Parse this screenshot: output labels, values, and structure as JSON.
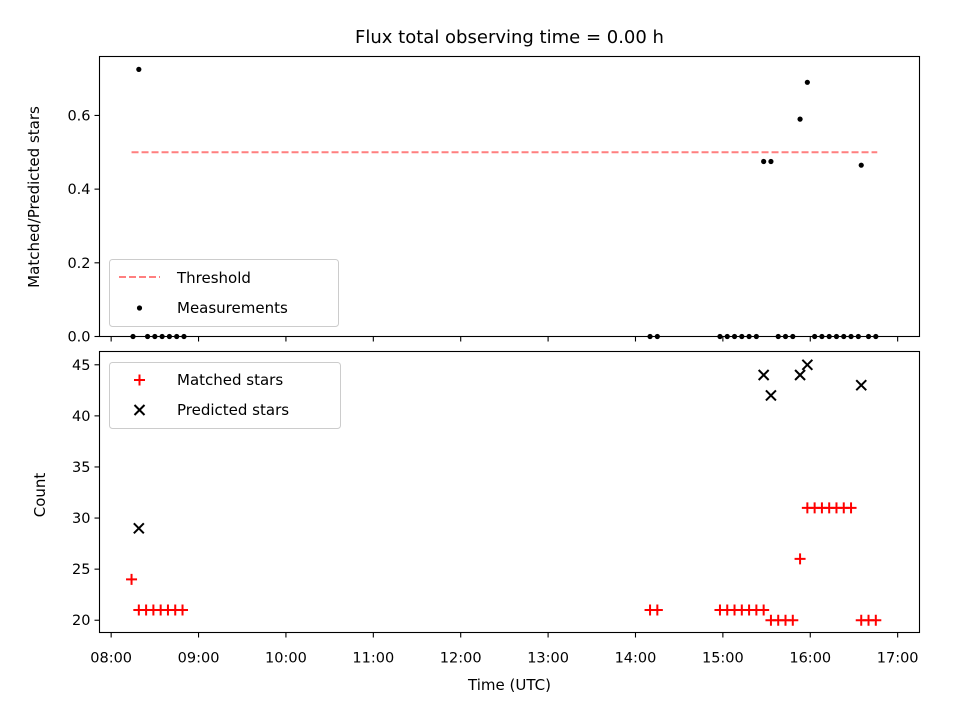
{
  "chart_data": {
    "title": "Flux total observing time = 0.00 h",
    "xlabel": "Time (UTC)",
    "x_tick_labels": [
      "08:00",
      "09:00",
      "10:00",
      "11:00",
      "12:00",
      "13:00",
      "14:00",
      "15:00",
      "16:00",
      "17:00"
    ],
    "x_ticks": [
      "08:00",
      "09:00",
      "10:00",
      "11:00",
      "12:00",
      "13:00",
      "14:00",
      "15:00",
      "16:00",
      "17:00"
    ],
    "xlim": [
      "07:52",
      "17:15"
    ],
    "panels": [
      {
        "type": "scatter",
        "ylabel": "Matched/Predicted stars",
        "ylim": [
          0,
          0.76
        ],
        "y_ticks": [
          0.0,
          0.2,
          0.4,
          0.6
        ],
        "y_tick_labels": [
          "0.0",
          "0.2",
          "0.4",
          "0.6"
        ],
        "grid": false,
        "legend_position": "lower-left",
        "threshold": {
          "name": "Threshold",
          "value": 0.5,
          "x_range": [
            "08:14",
            "16:46"
          ],
          "color": "#ff7f7f",
          "style": "dashed"
        },
        "series": [
          {
            "name": "Measurements",
            "marker": "dot",
            "color": "#000000",
            "points": [
              {
                "x": "08:15",
                "y": 0.0
              },
              {
                "x": "08:19",
                "y": 0.725
              },
              {
                "x": "08:25",
                "y": 0.0
              },
              {
                "x": "08:30",
                "y": 0.0
              },
              {
                "x": "08:35",
                "y": 0.0
              },
              {
                "x": "08:40",
                "y": 0.0
              },
              {
                "x": "08:45",
                "y": 0.0
              },
              {
                "x": "08:50",
                "y": 0.0
              },
              {
                "x": "14:10",
                "y": 0.0
              },
              {
                "x": "14:15",
                "y": 0.0
              },
              {
                "x": "14:58",
                "y": 0.0
              },
              {
                "x": "15:03",
                "y": 0.0
              },
              {
                "x": "15:08",
                "y": 0.0
              },
              {
                "x": "15:13",
                "y": 0.0
              },
              {
                "x": "15:18",
                "y": 0.0
              },
              {
                "x": "15:23",
                "y": 0.0
              },
              {
                "x": "15:28",
                "y": 0.475
              },
              {
                "x": "15:33",
                "y": 0.475
              },
              {
                "x": "15:38",
                "y": 0.0
              },
              {
                "x": "15:43",
                "y": 0.0
              },
              {
                "x": "15:48",
                "y": 0.0
              },
              {
                "x": "15:53",
                "y": 0.59
              },
              {
                "x": "15:58",
                "y": 0.69
              },
              {
                "x": "16:03",
                "y": 0.0
              },
              {
                "x": "16:08",
                "y": 0.0
              },
              {
                "x": "16:13",
                "y": 0.0
              },
              {
                "x": "16:18",
                "y": 0.0
              },
              {
                "x": "16:23",
                "y": 0.0
              },
              {
                "x": "16:28",
                "y": 0.0
              },
              {
                "x": "16:33",
                "y": 0.0
              },
              {
                "x": "16:35",
                "y": 0.465
              },
              {
                "x": "16:40",
                "y": 0.0
              },
              {
                "x": "16:45",
                "y": 0.0
              }
            ]
          }
        ]
      },
      {
        "type": "scatter",
        "ylabel": "Count",
        "ylim": [
          18.8,
          46.3
        ],
        "y_ticks": [
          20,
          25,
          30,
          35,
          40,
          45
        ],
        "y_tick_labels": [
          "20",
          "25",
          "30",
          "35",
          "40",
          "45"
        ],
        "grid": false,
        "legend_position": "upper-left",
        "series": [
          {
            "name": "Matched stars",
            "marker": "plus",
            "color": "#ff0000",
            "points": [
              {
                "x": "08:14",
                "y": 24
              },
              {
                "x": "08:19",
                "y": 21
              },
              {
                "x": "08:24",
                "y": 21
              },
              {
                "x": "08:29",
                "y": 21
              },
              {
                "x": "08:34",
                "y": 21
              },
              {
                "x": "08:39",
                "y": 21
              },
              {
                "x": "08:44",
                "y": 21
              },
              {
                "x": "08:49",
                "y": 21
              },
              {
                "x": "14:10",
                "y": 21
              },
              {
                "x": "14:15",
                "y": 21
              },
              {
                "x": "14:58",
                "y": 21
              },
              {
                "x": "15:03",
                "y": 21
              },
              {
                "x": "15:08",
                "y": 21
              },
              {
                "x": "15:13",
                "y": 21
              },
              {
                "x": "15:18",
                "y": 21
              },
              {
                "x": "15:23",
                "y": 21
              },
              {
                "x": "15:28",
                "y": 21
              },
              {
                "x": "15:33",
                "y": 20
              },
              {
                "x": "15:38",
                "y": 20
              },
              {
                "x": "15:43",
                "y": 20
              },
              {
                "x": "15:48",
                "y": 20
              },
              {
                "x": "15:53",
                "y": 26
              },
              {
                "x": "15:58",
                "y": 31
              },
              {
                "x": "16:03",
                "y": 31
              },
              {
                "x": "16:08",
                "y": 31
              },
              {
                "x": "16:13",
                "y": 31
              },
              {
                "x": "16:18",
                "y": 31
              },
              {
                "x": "16:23",
                "y": 31
              },
              {
                "x": "16:28",
                "y": 31
              },
              {
                "x": "16:35",
                "y": 20
              },
              {
                "x": "16:40",
                "y": 20
              },
              {
                "x": "16:45",
                "y": 20
              }
            ]
          },
          {
            "name": "Predicted stars",
            "marker": "x",
            "color": "#000000",
            "points": [
              {
                "x": "08:19",
                "y": 29
              },
              {
                "x": "15:28",
                "y": 44
              },
              {
                "x": "15:33",
                "y": 42
              },
              {
                "x": "15:53",
                "y": 44
              },
              {
                "x": "15:58",
                "y": 45
              },
              {
                "x": "16:35",
                "y": 43
              }
            ]
          }
        ]
      }
    ]
  }
}
